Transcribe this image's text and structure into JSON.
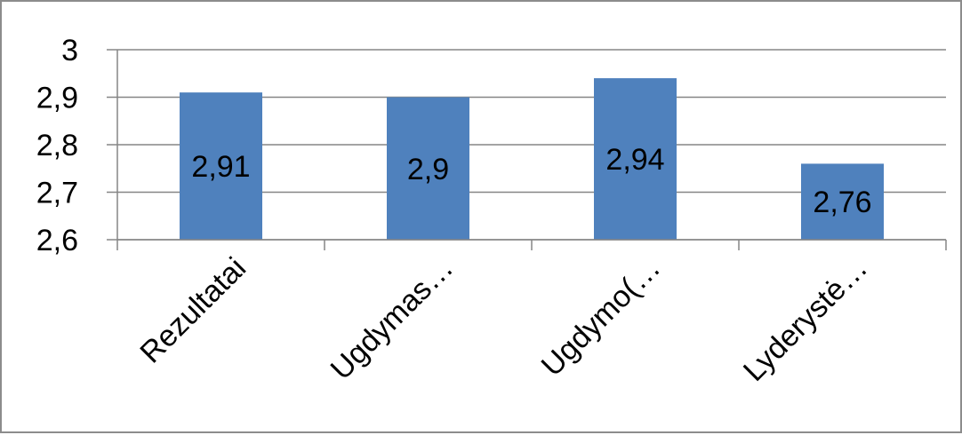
{
  "chart_data": {
    "type": "bar",
    "categories": [
      "Rezultatai",
      "Ugdymas…",
      "Ugdymo(…",
      "Lyderystė…"
    ],
    "values": [
      2.91,
      2.9,
      2.94,
      2.76
    ],
    "data_labels": [
      "2,91",
      "2,9",
      "2,94",
      "2,76"
    ],
    "y_ticks": [
      2.6,
      2.7,
      2.8,
      2.9,
      3.0
    ],
    "y_tick_labels": [
      "2,6",
      "2,7",
      "2,8",
      "2,9",
      "3"
    ],
    "ylim": [
      2.6,
      3.0
    ],
    "grid": true,
    "legend": "none",
    "title": "",
    "xlabel": "",
    "ylabel": "",
    "bar_color": "#4f81bd",
    "grid_color": "#868686"
  }
}
